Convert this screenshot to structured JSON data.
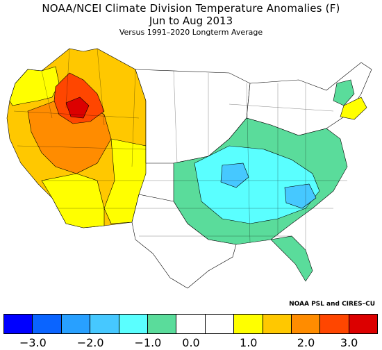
{
  "title": "NOAA/NCEI Climate Division Temperature Anomalies (F)",
  "period": "Jun to Aug 2013",
  "baseline": "Versus 1991–2020 Longterm Average",
  "credit": "NOAA PSL and CIRES–CU",
  "legend": {
    "colors": [
      "#0000ff",
      "#0a64ff",
      "#28a0ff",
      "#46c8ff",
      "#5affff",
      "#5adc9b",
      "#ffffff",
      "#ffffff",
      "#ffff00",
      "#ffc800",
      "#ff8c00",
      "#ff4600",
      "#dc0000"
    ],
    "ticks": [
      "−3.0",
      "−2.0",
      "−1.0",
      "0.0",
      "1.0",
      "2.0",
      "3.0"
    ],
    "tick_values": [
      -3,
      -2,
      -1,
      0,
      1,
      2,
      3
    ]
  }
}
